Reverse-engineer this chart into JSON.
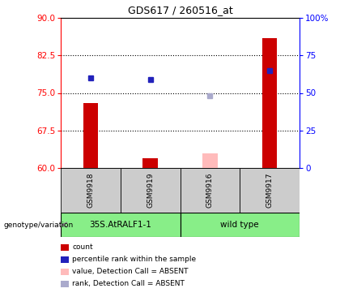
{
  "title": "GDS617 / 260516_at",
  "samples": [
    "GSM9918",
    "GSM9919",
    "GSM9916",
    "GSM9917"
  ],
  "count_values": [
    73.0,
    62.0,
    63.0,
    86.0
  ],
  "count_absent": [
    false,
    false,
    true,
    false
  ],
  "rank_values": [
    60.0,
    59.0,
    48.0,
    65.0
  ],
  "rank_absent": [
    false,
    false,
    true,
    false
  ],
  "ylim_left": [
    60,
    90
  ],
  "ylim_right": [
    0,
    100
  ],
  "yticks_left": [
    60,
    67.5,
    75,
    82.5,
    90
  ],
  "yticks_right": [
    0,
    25,
    50,
    75,
    100
  ],
  "ytick_labels_right": [
    "0",
    "25",
    "50",
    "75",
    "100%"
  ],
  "hlines": [
    67.5,
    75,
    82.5
  ],
  "bar_color_present": "#cc0000",
  "bar_color_absent": "#ffbbbb",
  "rank_color_present": "#2222bb",
  "rank_color_absent": "#aaaacc",
  "group1_label": "35S.AtRALF1-1",
  "group2_label": "wild type",
  "group1_samples": [
    0,
    1
  ],
  "group2_samples": [
    2,
    3
  ],
  "group_bg_color": "#88ee88",
  "sample_bg_color": "#cccccc",
  "legend_items": [
    {
      "label": "count",
      "color": "#cc0000"
    },
    {
      "label": "percentile rank within the sample",
      "color": "#2222bb"
    },
    {
      "label": "value, Detection Call = ABSENT",
      "color": "#ffbbbb"
    },
    {
      "label": "rank, Detection Call = ABSENT",
      "color": "#aaaacc"
    }
  ],
  "bar_width": 0.25,
  "rank_marker_size": 5,
  "xlim": [
    -0.5,
    3.5
  ]
}
